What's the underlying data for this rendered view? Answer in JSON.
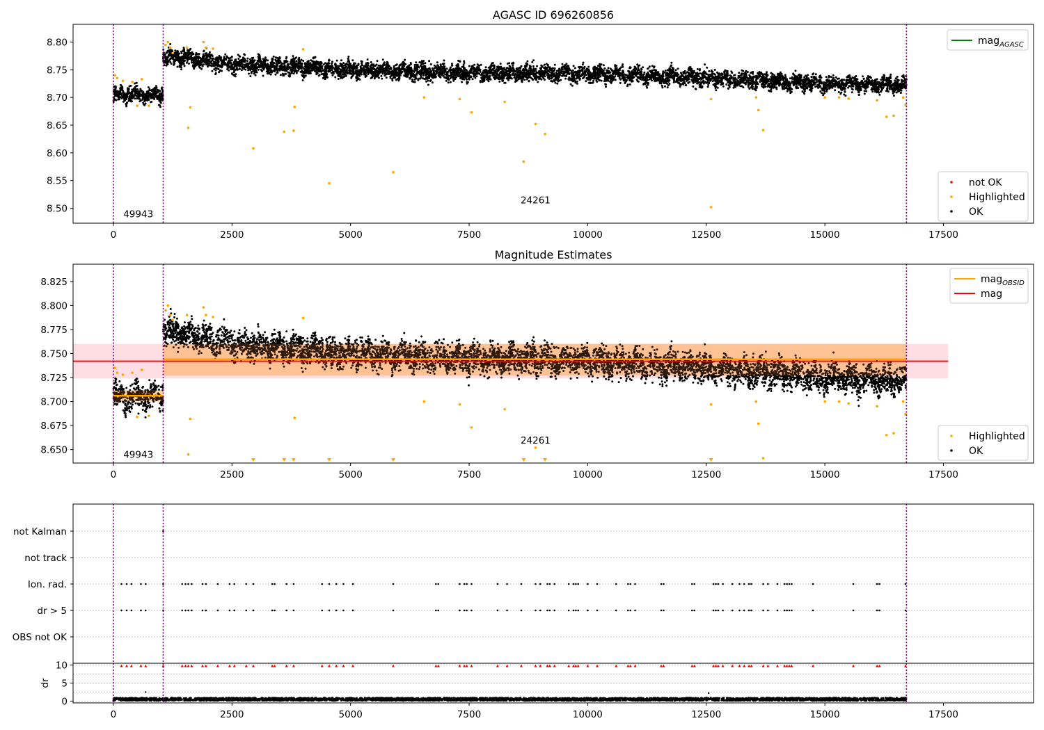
{
  "colors": {
    "ok": "#000000",
    "highlighted": "#ffa500",
    "not_ok": "#ff0000",
    "mag_agasc": "#008000",
    "mag_obsid": "#ffa500",
    "mag": "#ff0000",
    "obs_boundary": "#800080",
    "mag_band": "#ffb6c1"
  },
  "chart_data": [
    {
      "type": "scatter",
      "title": "AGASC ID 696260856",
      "xlim": [
        -850,
        19400
      ],
      "ylim": [
        8.473,
        8.832
      ],
      "xticks": [
        "0",
        "2500",
        "5000",
        "7500",
        "10000",
        "12500",
        "15000",
        "17500"
      ],
      "yticks": [
        "8.50",
        "8.55",
        "8.60",
        "8.65",
        "8.70",
        "8.75",
        "8.80"
      ],
      "grid": false,
      "legends": [
        {
          "placement": "top-right",
          "entries": [
            {
              "label": "mag",
              "sub": "AGASC",
              "marker": "line",
              "color": "#008000"
            }
          ]
        },
        {
          "placement": "bottom-right",
          "entries": [
            {
              "label": "not OK",
              "marker": "dot",
              "color": "#ff0000"
            },
            {
              "label": "Highlighted",
              "marker": "dot",
              "color": "#ffa500"
            },
            {
              "label": "OK",
              "marker": "dot",
              "color": "#000000"
            }
          ]
        }
      ],
      "obs_boundaries": [
        0,
        1050,
        16720
      ],
      "obsid_annotations": [
        {
          "text": "49943",
          "x": 525,
          "y": 8.49
        },
        {
          "text": "24261",
          "x": 8900,
          "y": 8.515
        }
      ],
      "series": [
        {
          "name": "OK",
          "segments": [
            {
              "x_range": [
                0,
                1050
              ],
              "center": 8.705,
              "spread": 0.012
            },
            {
              "x_range": [
                1050,
                16720
              ],
              "trend": [
                [
                  1050,
                  8.775
                ],
                [
                  2500,
                  8.76
                ],
                [
                  5000,
                  8.75
                ],
                [
                  7500,
                  8.745
                ],
                [
                  10000,
                  8.743
                ],
                [
                  12500,
                  8.735
                ],
                [
                  15000,
                  8.725
                ],
                [
                  16720,
                  8.722
                ]
              ],
              "spread": 0.013
            }
          ]
        },
        {
          "name": "Highlighted",
          "points": [
            [
              30,
              8.74
            ],
            [
              80,
              8.735
            ],
            [
              200,
              8.73
            ],
            [
              400,
              8.728
            ],
            [
              500,
              8.685
            ],
            [
              600,
              8.733
            ],
            [
              750,
              8.685
            ],
            [
              1100,
              8.795
            ],
            [
              1150,
              8.8
            ],
            [
              1200,
              8.79
            ],
            [
              1250,
              8.78
            ],
            [
              1550,
              8.79
            ],
            [
              1580,
              8.645
            ],
            [
              1620,
              8.682
            ],
            [
              1900,
              8.8
            ],
            [
              1950,
              8.79
            ],
            [
              2100,
              8.788
            ],
            [
              2950,
              8.608
            ],
            [
              3600,
              8.638
            ],
            [
              3800,
              8.64
            ],
            [
              3820,
              8.683
            ],
            [
              4000,
              8.787
            ],
            [
              4550,
              8.545
            ],
            [
              5900,
              8.565
            ],
            [
              6550,
              8.7
            ],
            [
              7300,
              8.697
            ],
            [
              7550,
              8.673
            ],
            [
              8250,
              8.692
            ],
            [
              8650,
              8.584
            ],
            [
              8900,
              8.652
            ],
            [
              9100,
              8.634
            ],
            [
              12600,
              8.502
            ],
            [
              12600,
              8.697
            ],
            [
              13550,
              8.7
            ],
            [
              13600,
              8.677
            ],
            [
              13700,
              8.641
            ],
            [
              15000,
              8.7
            ],
            [
              15300,
              8.7
            ],
            [
              15500,
              8.698
            ],
            [
              16100,
              8.695
            ],
            [
              16300,
              8.665
            ],
            [
              16450,
              8.667
            ],
            [
              16650,
              8.7
            ],
            [
              16700,
              8.687
            ]
          ]
        }
      ]
    },
    {
      "type": "scatter",
      "title": "Magnitude Estimates",
      "xlim": [
        -850,
        19400
      ],
      "ylim": [
        8.636,
        8.843
      ],
      "xticks": [
        "0",
        "2500",
        "5000",
        "7500",
        "10000",
        "12500",
        "15000",
        "17500"
      ],
      "yticks": [
        "8.650",
        "8.675",
        "8.700",
        "8.725",
        "8.750",
        "8.775",
        "8.800",
        "8.825"
      ],
      "grid": false,
      "legends": [
        {
          "placement": "top-right",
          "entries": [
            {
              "label": "mag",
              "sub": "OBSID",
              "marker": "line",
              "color": "#ffa500"
            },
            {
              "label": "mag",
              "marker": "line",
              "color": "#ff0000"
            }
          ]
        },
        {
          "placement": "bottom-right",
          "entries": [
            {
              "label": "Highlighted",
              "marker": "dot",
              "color": "#ffa500"
            },
            {
              "label": "OK",
              "marker": "dot",
              "color": "#000000"
            }
          ]
        }
      ],
      "obs_boundaries": [
        0,
        1050,
        16720
      ],
      "mag": {
        "value": 8.742,
        "band": [
          8.724,
          8.76
        ],
        "x_range": [
          -850,
          17600
        ]
      },
      "mag_obsid": [
        {
          "x_range": [
            0,
            1050
          ],
          "value": 8.706,
          "band": [
            8.7,
            8.712
          ]
        },
        {
          "x_range": [
            1050,
            16720
          ],
          "value": 8.744,
          "band": [
            8.727,
            8.76
          ]
        }
      ],
      "obsid_annotations": [
        {
          "text": "49943",
          "x": 525,
          "y": 8.645
        },
        {
          "text": "24261",
          "x": 8900,
          "y": 8.66
        }
      ],
      "series": [
        {
          "name": "OK",
          "segments": [
            {
              "x_range": [
                0,
                1050
              ],
              "center": 8.705,
              "spread": 0.012
            },
            {
              "x_range": [
                1050,
                16720
              ],
              "trend": [
                [
                  1050,
                  8.775
                ],
                [
                  2500,
                  8.76
                ],
                [
                  5000,
                  8.75
                ],
                [
                  7500,
                  8.745
                ],
                [
                  10000,
                  8.743
                ],
                [
                  12500,
                  8.735
                ],
                [
                  15000,
                  8.725
                ],
                [
                  16720,
                  8.722
                ]
              ],
              "spread": 0.013
            }
          ]
        },
        {
          "name": "Highlighted",
          "points": [
            [
              30,
              8.735
            ],
            [
              80,
              8.73
            ],
            [
              200,
              8.728
            ],
            [
              400,
              8.73
            ],
            [
              500,
              8.684
            ],
            [
              600,
              8.733
            ],
            [
              750,
              8.685
            ],
            [
              1100,
              8.795
            ],
            [
              1150,
              8.8
            ],
            [
              1200,
              8.79
            ],
            [
              1250,
              8.785
            ],
            [
              1550,
              8.79
            ],
            [
              1580,
              8.645
            ],
            [
              1620,
              8.682
            ],
            [
              1900,
              8.798
            ],
            [
              1950,
              8.79
            ],
            [
              2100,
              8.788
            ],
            [
              3820,
              8.683
            ],
            [
              4000,
              8.787
            ],
            [
              6550,
              8.7
            ],
            [
              7300,
              8.697
            ],
            [
              7550,
              8.673
            ],
            [
              8250,
              8.692
            ],
            [
              8900,
              8.652
            ],
            [
              12600,
              8.697
            ],
            [
              13550,
              8.7
            ],
            [
              13600,
              8.677
            ],
            [
              13700,
              8.641
            ],
            [
              15000,
              8.7
            ],
            [
              15300,
              8.7
            ],
            [
              15500,
              8.698
            ],
            [
              16100,
              8.695
            ],
            [
              16300,
              8.665
            ],
            [
              16450,
              8.667
            ],
            [
              16650,
              8.7
            ],
            [
              16700,
              8.687
            ]
          ]
        },
        {
          "name": "Highlighted (below range)",
          "marker": "triangle-down",
          "points": [
            [
              2950,
              8.638
            ],
            [
              3600,
              8.638
            ],
            [
              3800,
              8.638
            ],
            [
              4550,
              8.638
            ],
            [
              5900,
              8.638
            ],
            [
              8650,
              8.638
            ],
            [
              9100,
              8.638
            ],
            [
              12600,
              8.638
            ]
          ]
        }
      ]
    },
    {
      "type": "scatter",
      "title": "",
      "xlim": [
        -850,
        19400
      ],
      "ylim": [
        -0.5,
        5.5
      ],
      "yticks": [
        "not Kalman",
        "not track",
        "Ion. rad.",
        "dr > 5",
        "OBS not OK"
      ],
      "grid": true,
      "obs_boundaries": [
        0,
        1050,
        16720
      ],
      "flags": {
        "not Kalman": [
          1050
        ],
        "not track": [],
        "Ion. rad.": [
          170,
          280,
          380,
          580,
          680,
          1050,
          1450,
          1520,
          1580,
          1650,
          1880,
          1950,
          2200,
          2450,
          2550,
          2800,
          2950,
          3350,
          3400,
          3650,
          3800,
          4400,
          4550,
          4700,
          4850,
          5050,
          5900,
          6800,
          6850,
          7300,
          7400,
          7450,
          7550,
          8100,
          8300,
          8600,
          8900,
          9000,
          9150,
          9200,
          9300,
          9600,
          9700,
          9750,
          9800,
          10000,
          10200,
          10600,
          10850,
          10900,
          11000,
          11550,
          11600,
          12200,
          12250,
          12650,
          12700,
          12750,
          12850,
          13050,
          13200,
          13300,
          13400,
          13450,
          13700,
          13800,
          14000,
          14150,
          14200,
          14250,
          14300,
          14750,
          15600,
          16100,
          16150,
          16700
        ],
        "dr > 5": [
          170,
          280,
          380,
          580,
          680,
          1050,
          1450,
          1520,
          1580,
          1650,
          1880,
          1950,
          2200,
          2450,
          2550,
          2800,
          2950,
          3350,
          3400,
          3650,
          3800,
          4400,
          4550,
          4700,
          4850,
          5050,
          5900,
          6800,
          6850,
          7300,
          7400,
          7450,
          7550,
          8100,
          8300,
          8600,
          8900,
          9000,
          9150,
          9200,
          9300,
          9600,
          9700,
          9750,
          9800,
          10000,
          10200,
          10600,
          10850,
          10900,
          11000,
          11550,
          11600,
          12200,
          12250,
          12650,
          12700,
          12750,
          12850,
          13050,
          13200,
          13300,
          13400,
          13450,
          13700,
          13800,
          14000,
          14150,
          14200,
          14250,
          14300,
          14750,
          15600,
          16100,
          16150,
          16700
        ],
        "OBS not OK": []
      }
    },
    {
      "type": "scatter",
      "title": "",
      "ylabel": "dr",
      "xlim": [
        -850,
        19400
      ],
      "ylim": [
        -0.5,
        10.5
      ],
      "xticks": [
        "0",
        "2500",
        "5000",
        "7500",
        "10000",
        "12500",
        "15000",
        "17500"
      ],
      "yticks": [
        "0",
        "5",
        "10"
      ],
      "grid": true,
      "obs_boundaries": [
        0,
        1050,
        16720
      ],
      "series": [
        {
          "name": "dr",
          "baseline": 0.5,
          "spread": 0.4,
          "x_range": [
            0,
            16720
          ],
          "outliers": [
            [
              680,
              2.5
            ],
            [
              12550,
              2.2
            ]
          ]
        },
        {
          "name": "dr > 5",
          "color": "#ff0000",
          "marker": "triangle-up",
          "value": 10,
          "x": [
            170,
            280,
            380,
            580,
            680,
            1050,
            1450,
            1520,
            1580,
            1650,
            1880,
            1950,
            2200,
            2450,
            2550,
            2800,
            2950,
            3350,
            3400,
            3650,
            3800,
            4400,
            4550,
            4700,
            4850,
            5050,
            5900,
            6800,
            6850,
            7300,
            7400,
            7450,
            7550,
            8100,
            8300,
            8600,
            8900,
            9000,
            9150,
            9200,
            9300,
            9600,
            9700,
            9750,
            9800,
            10000,
            10200,
            10600,
            10850,
            10900,
            11000,
            11550,
            11600,
            12200,
            12250,
            12650,
            12700,
            12750,
            12850,
            13050,
            13200,
            13300,
            13400,
            13450,
            13700,
            13800,
            14000,
            14150,
            14200,
            14250,
            14300,
            14750,
            15600,
            16100,
            16150,
            16700
          ]
        }
      ]
    }
  ]
}
